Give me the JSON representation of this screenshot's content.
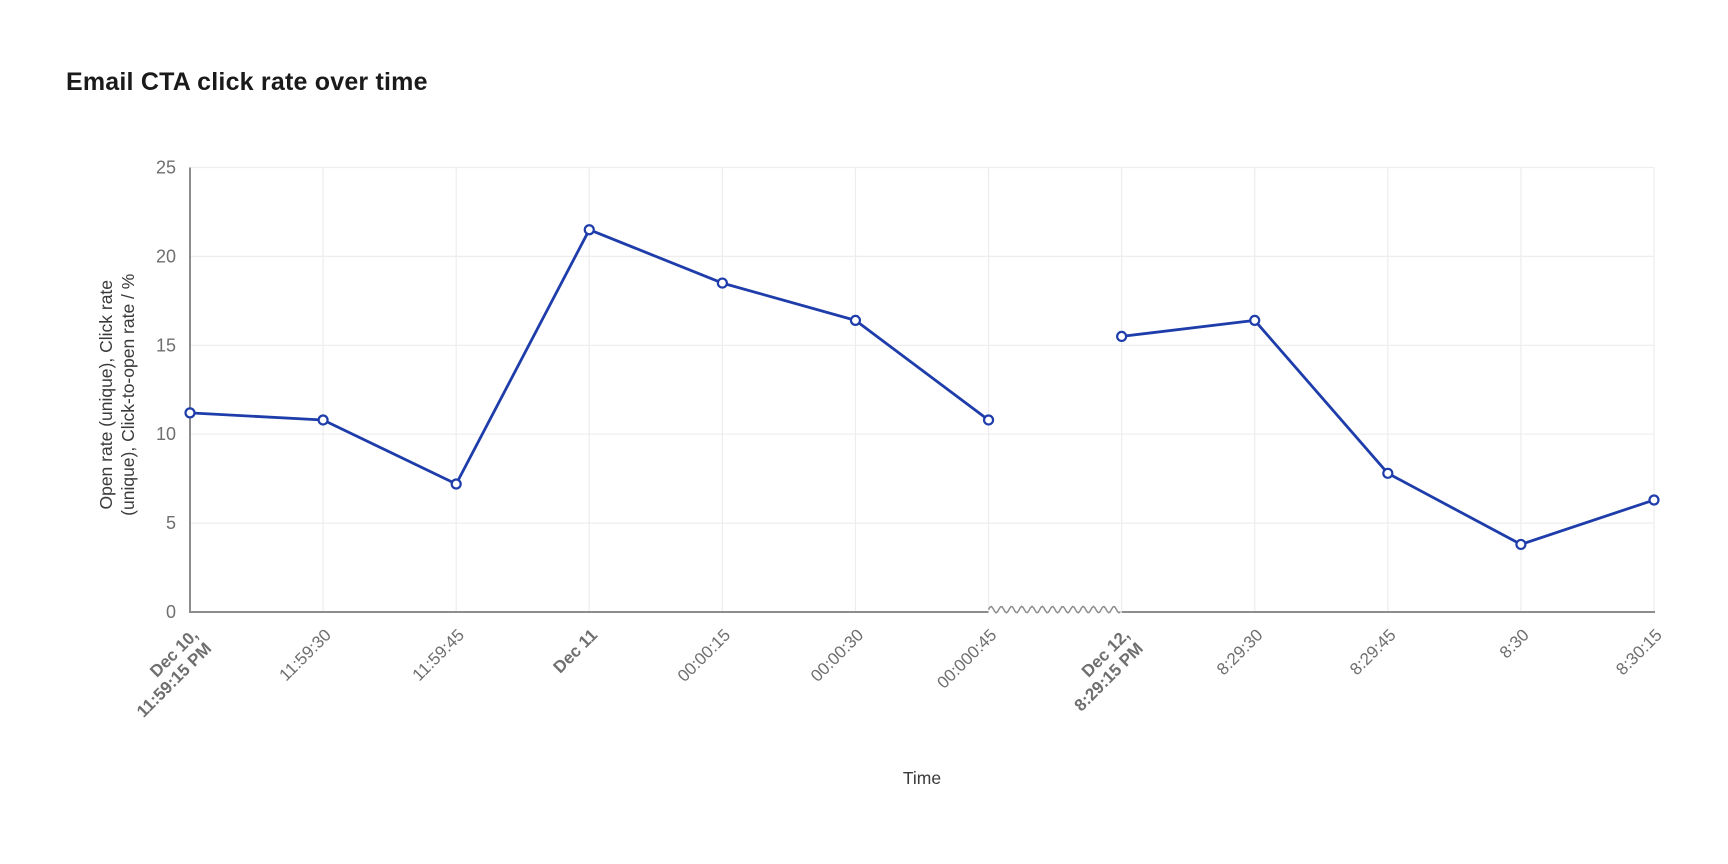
{
  "title": "Email CTA click rate over time",
  "chart_data": {
    "type": "line",
    "title": "Email CTA click rate over time",
    "xlabel": "Time",
    "ylabel": "Open rate (unique), Click rate (unique), Click-to-open rate / %",
    "ylabel_lines": [
      "Open rate (unique), Click rate",
      "(unique), Click-to-open rate / %"
    ],
    "ylim": [
      0,
      25
    ],
    "yticks": [
      0,
      5,
      10,
      15,
      20,
      25
    ],
    "grid": true,
    "legend_position": "none",
    "categories": [
      "Dec 10, 11:59:15 PM",
      "11:59:30",
      "11:59:45",
      "Dec 11",
      "00:00:15",
      "00:00:30",
      "00:000:45",
      "Dec 12, 8:29:15 PM",
      "8:29:30",
      "8:29:45",
      "8:30",
      "8:30:15"
    ],
    "tick_label_lines": [
      [
        "Dec 10,",
        "11:59:15 PM"
      ],
      [
        "11:59:30"
      ],
      [
        "11:59:45"
      ],
      [
        "Dec 11"
      ],
      [
        "00:00:15"
      ],
      [
        "00:00:30"
      ],
      [
        "00:000:45"
      ],
      [
        "Dec 12,",
        "8:29:15 PM"
      ],
      [
        "8:29:30"
      ],
      [
        "8:29:45"
      ],
      [
        "8:30"
      ],
      [
        "8:30:15"
      ]
    ],
    "bold_tick_indices": [
      0,
      3,
      7
    ],
    "series": [
      {
        "name": "CTA click rate",
        "values": [
          11.2,
          10.8,
          7.2,
          21.5,
          18.5,
          16.4,
          10.8,
          15.5,
          16.4,
          7.8,
          3.8,
          6.3
        ]
      }
    ],
    "segments": [
      [
        0,
        6
      ],
      [
        7,
        11
      ]
    ],
    "axis_break": {
      "between_indices": [
        6,
        7
      ],
      "style": "wavy"
    },
    "colors": {
      "line": "#1e3daa",
      "marker_fill": "#ffffff",
      "axis": "#8d8d8d",
      "grid": "#ededed",
      "tick_text": "#6f6f6f",
      "axis_title_text": "#3a3a3a"
    }
  }
}
